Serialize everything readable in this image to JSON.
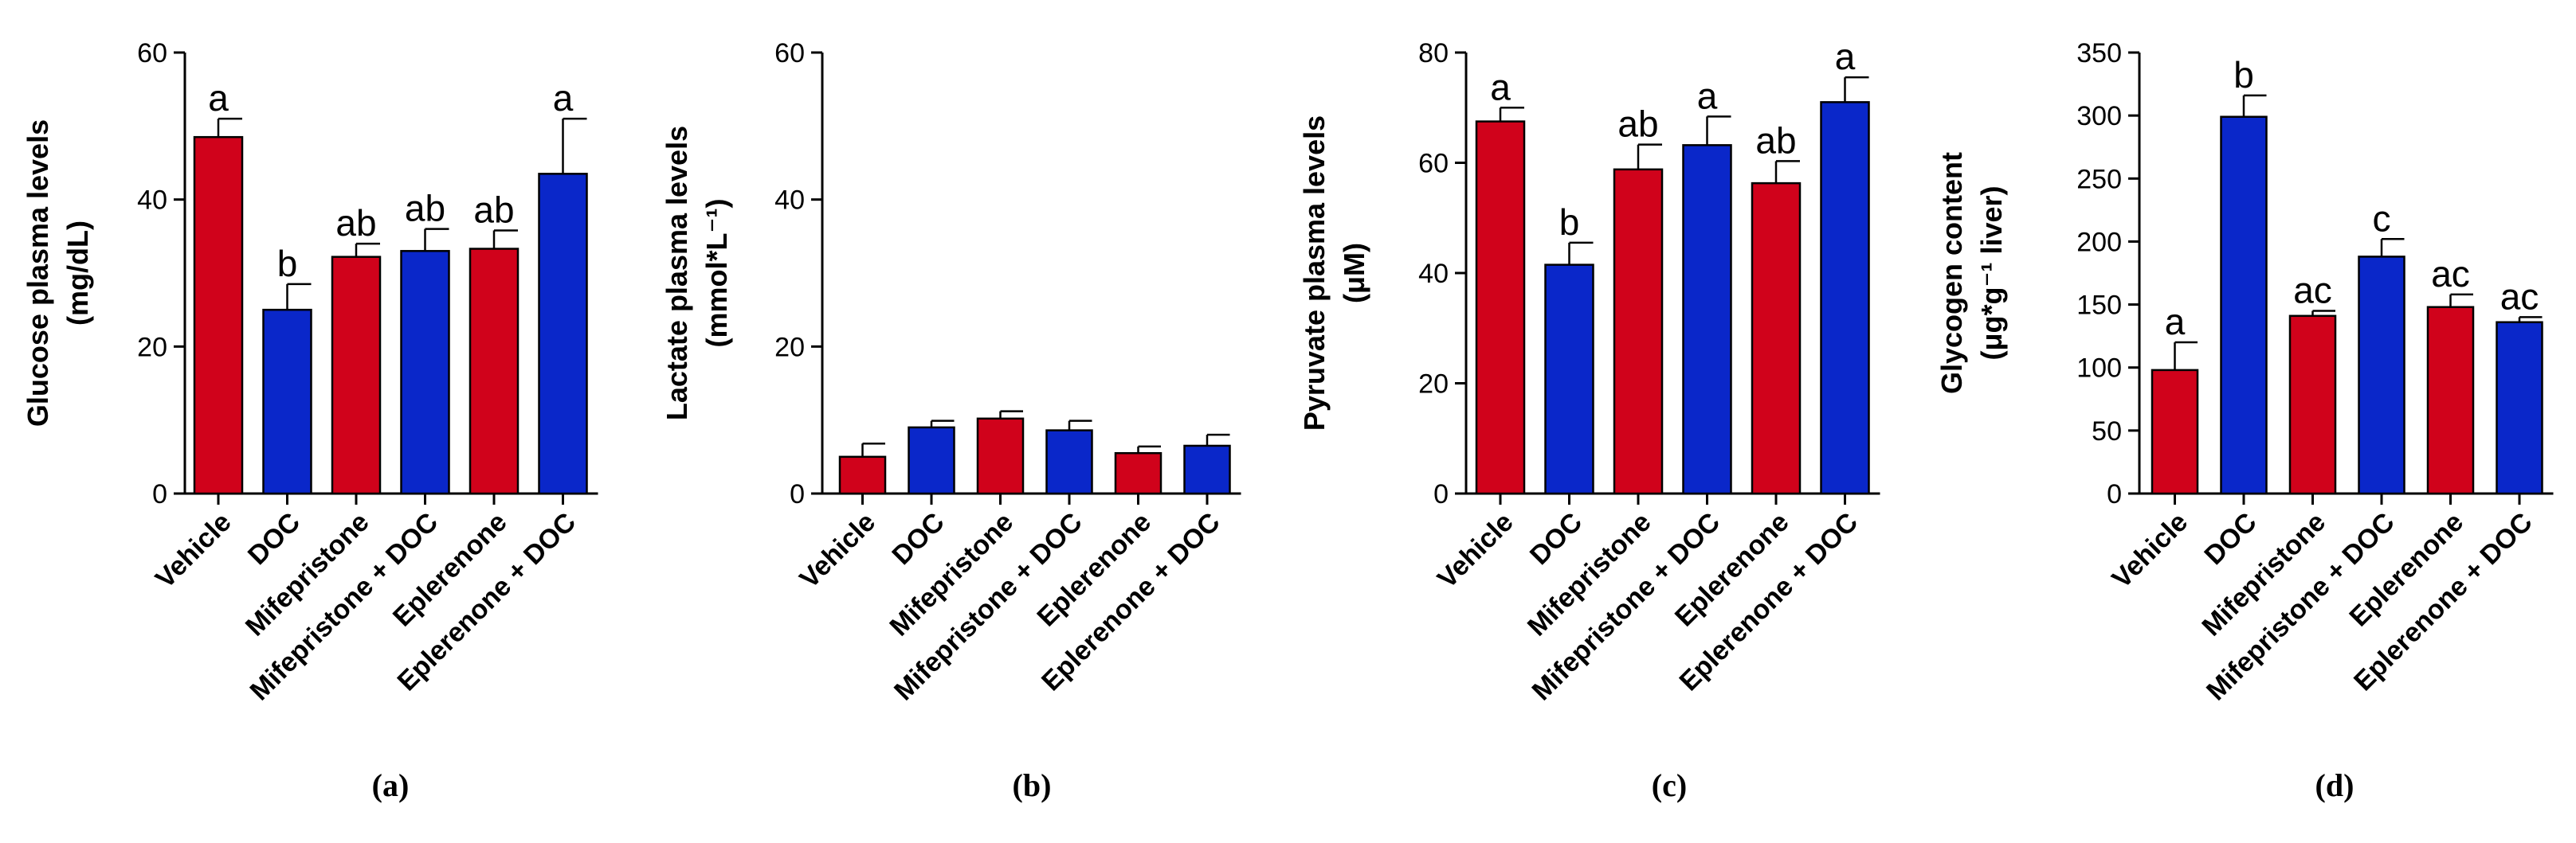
{
  "colors": {
    "red": "#d0021b",
    "blue": "#0a27c9",
    "axis": "#000000"
  },
  "chart_data": [
    {
      "type": "bar",
      "panel_label": "(a)",
      "ylabel_lines": [
        "Glucose plasma levels",
        "(mg/dL)"
      ],
      "categories": [
        "Vehicle",
        "DOC",
        "Mifepristone",
        "Mifepristone + DOC",
        "Eplerenone",
        "Eplerenone + DOC"
      ],
      "values": [
        48.5,
        25,
        32.2,
        33,
        33.3,
        43.5
      ],
      "errors": [
        2.5,
        3.5,
        1.8,
        3,
        2.5,
        7.5
      ],
      "significance": [
        "a",
        "b",
        "ab",
        "ab",
        "ab",
        "a"
      ],
      "bar_colors": [
        "red",
        "blue",
        "red",
        "blue",
        "red",
        "blue"
      ],
      "ylim": [
        0,
        60
      ],
      "yticks": [
        0,
        20,
        40,
        60
      ]
    },
    {
      "type": "bar",
      "panel_label": "(b)",
      "ylabel_lines": [
        "Lactate plasma levels",
        "(mmol*L⁻¹)"
      ],
      "categories": [
        "Vehicle",
        "DOC",
        "Mifepristone",
        "Mifepristone + DOC",
        "Eplerenone",
        "Eplerenone + DOC"
      ],
      "values": [
        5,
        9,
        10.2,
        8.6,
        5.5,
        6.5
      ],
      "errors": [
        1.8,
        0.9,
        1.0,
        1.3,
        0.9,
        1.5
      ],
      "significance": [
        "",
        "",
        "",
        "",
        "",
        ""
      ],
      "bar_colors": [
        "red",
        "blue",
        "red",
        "blue",
        "red",
        "blue"
      ],
      "ylim": [
        0,
        60
      ],
      "yticks": [
        0,
        20,
        40,
        60
      ]
    },
    {
      "type": "bar",
      "panel_label": "(c)",
      "ylabel_lines": [
        "Pyruvate plasma levels",
        "(μM)"
      ],
      "categories": [
        "Vehicle",
        "DOC",
        "Mifepristone",
        "Mifepristone + DOC",
        "Eplerenone",
        "Eplerenone + DOC"
      ],
      "values": [
        67.5,
        41.5,
        58.8,
        63.2,
        56.3,
        71
      ],
      "errors": [
        2.5,
        4,
        4.5,
        5.2,
        4,
        4.5
      ],
      "significance": [
        "a",
        "b",
        "ab",
        "a",
        "ab",
        "a"
      ],
      "bar_colors": [
        "red",
        "blue",
        "red",
        "blue",
        "red",
        "blue"
      ],
      "ylim": [
        0,
        80
      ],
      "yticks": [
        0,
        20,
        40,
        60,
        80
      ]
    },
    {
      "type": "bar",
      "panel_label": "(d)",
      "ylabel_lines": [
        "Glycogen content",
        "(μg*g⁻¹ liver)"
      ],
      "categories": [
        "Vehicle",
        "DOC",
        "Mifepristone",
        "Mifepristone + DOC",
        "Eplerenone",
        "Eplerenone + DOC"
      ],
      "values": [
        98,
        299,
        141,
        188,
        148,
        136
      ],
      "errors": [
        22,
        17,
        4,
        14,
        10,
        4
      ],
      "significance": [
        "a",
        "b",
        "ac",
        "c",
        "ac",
        "ac"
      ],
      "bar_colors": [
        "red",
        "blue",
        "red",
        "blue",
        "red",
        "blue"
      ],
      "ylim": [
        0,
        350
      ],
      "yticks": [
        0,
        50,
        100,
        150,
        200,
        250,
        300,
        350
      ]
    }
  ]
}
